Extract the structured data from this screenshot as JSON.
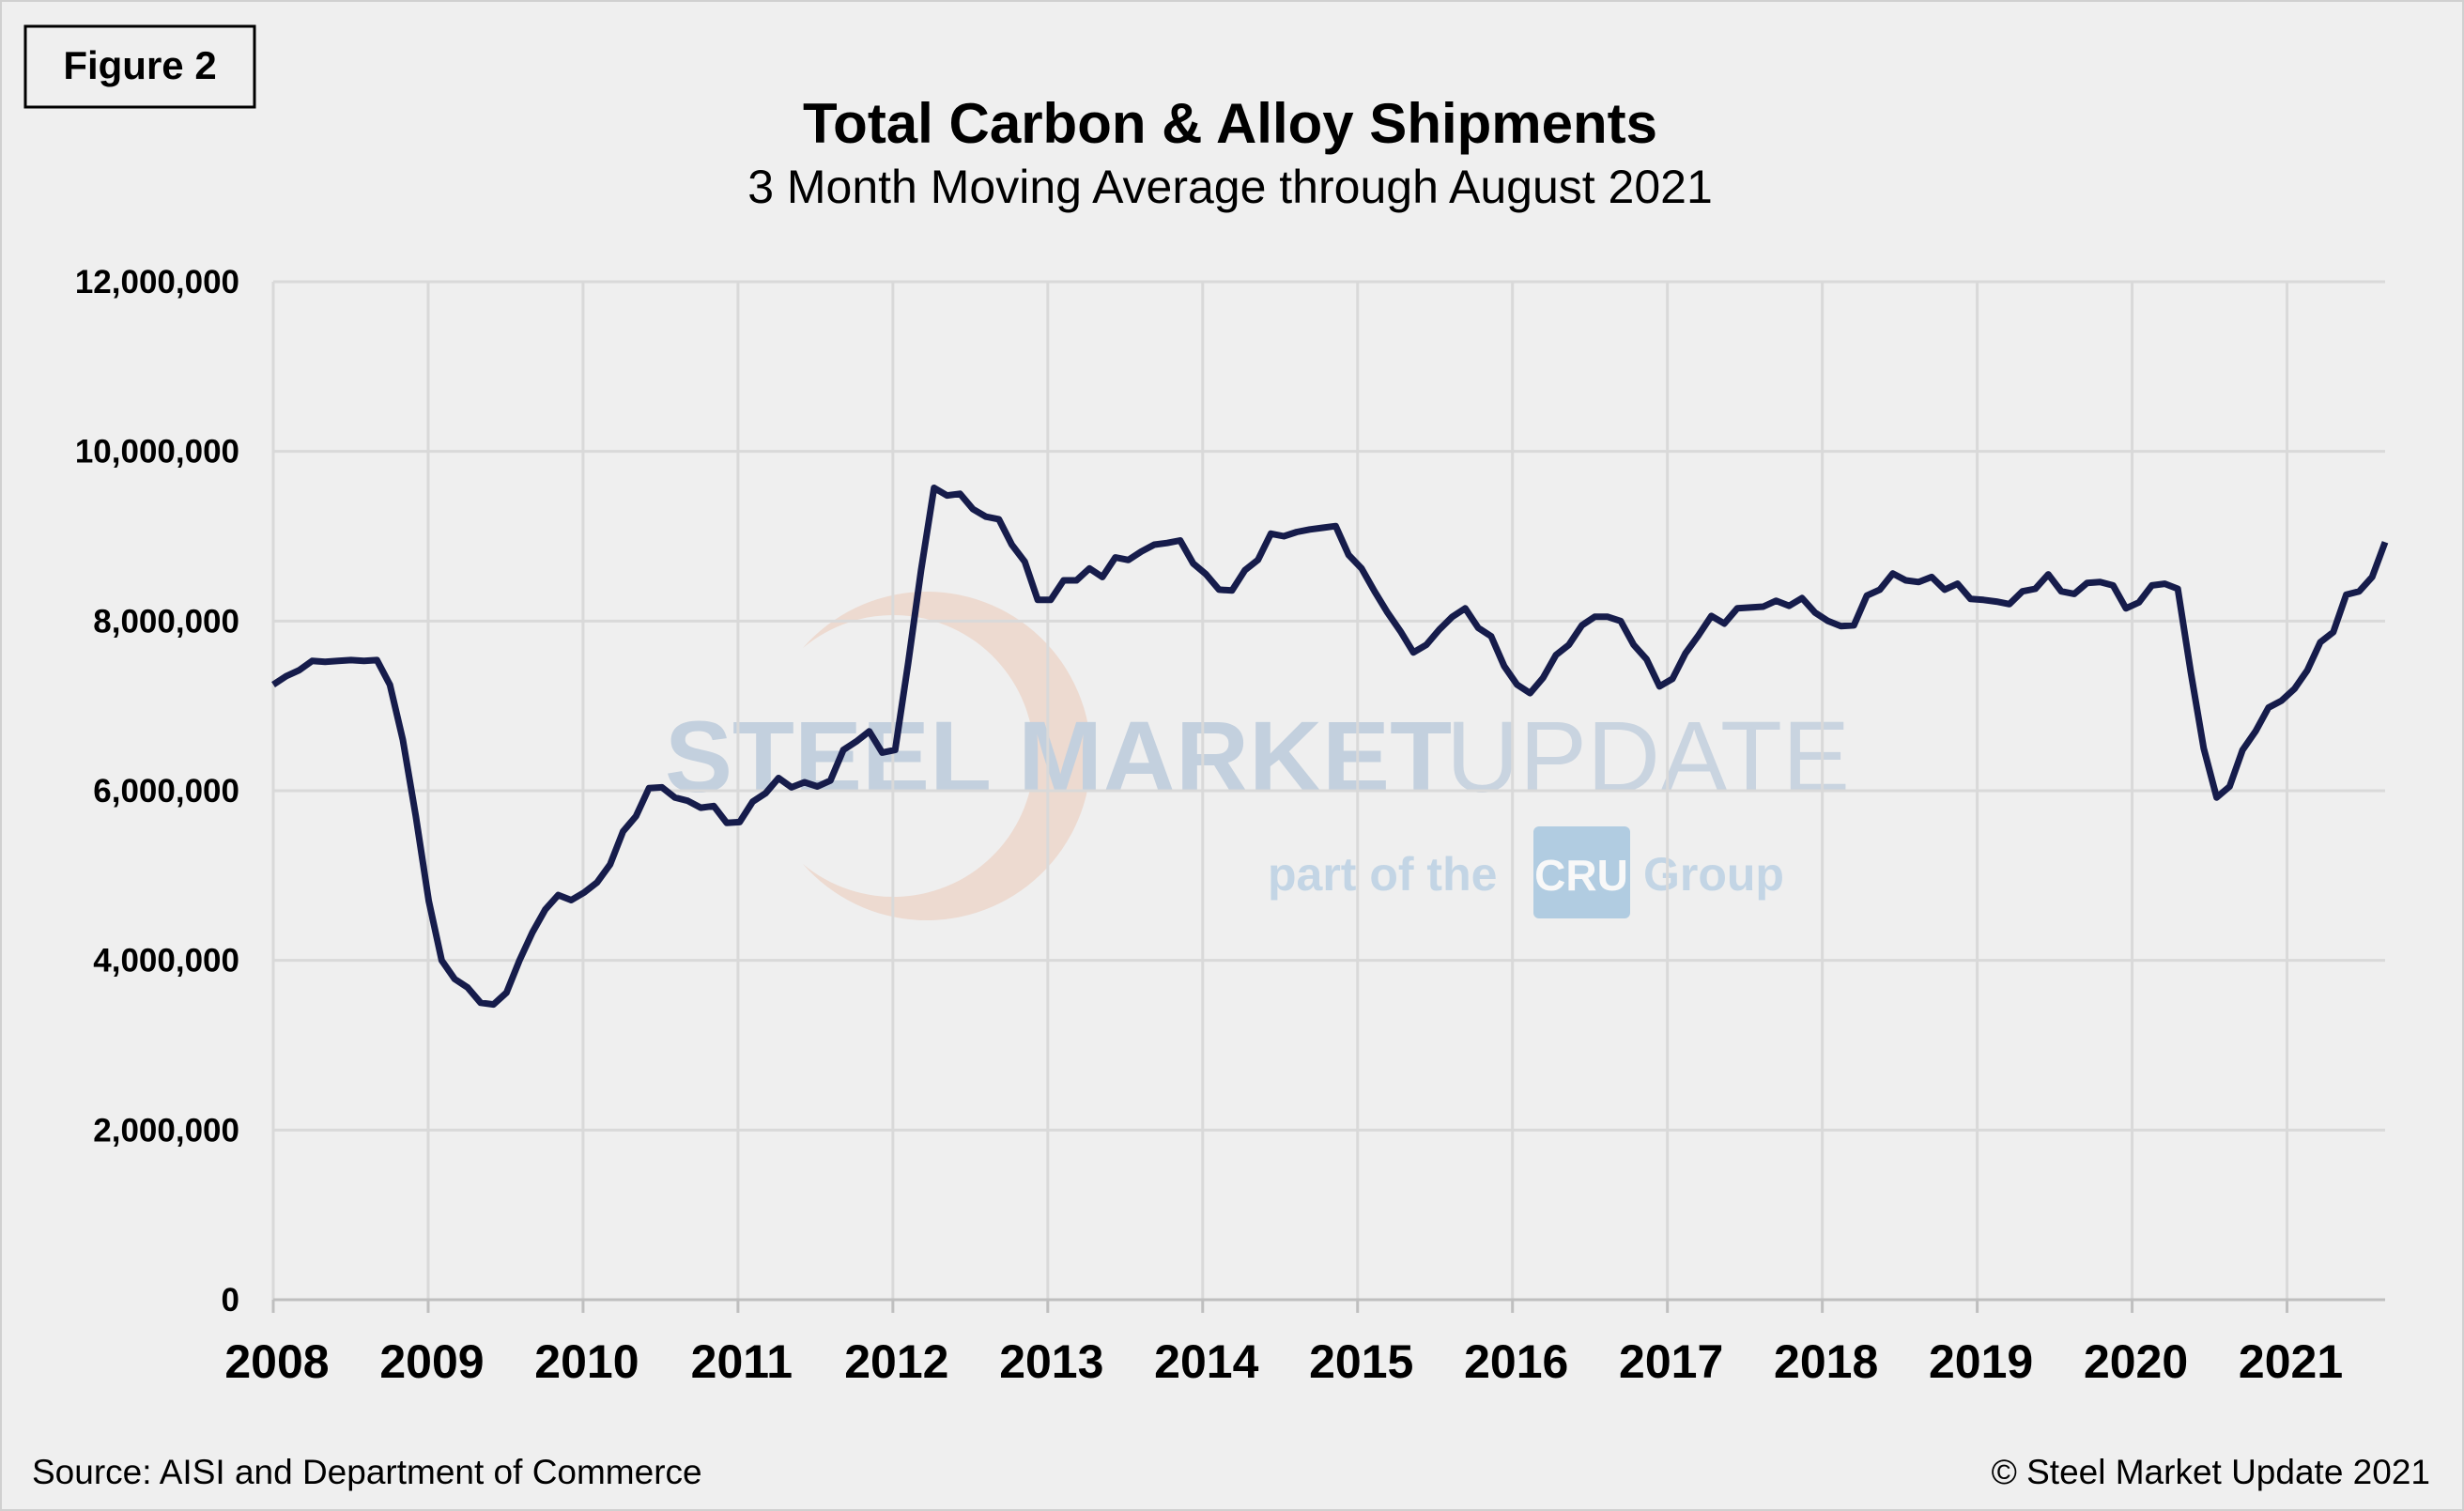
{
  "figure_label": "Figure 2",
  "source": "Source: AISI and Department of Commerce",
  "copyright": "© Steel Market Update 2021",
  "watermark": {
    "line1a": "STEEL MARKET",
    "line1b": "UPDATE",
    "line2a": "part of the",
    "line2b": "CRU",
    "line2c": "Group"
  },
  "colors": {
    "line": "#161c4b",
    "background": "#efefef",
    "grid": "#d9d9d9"
  },
  "chart_data": {
    "type": "line",
    "title": "Total Carbon & Alloy Shipments",
    "subtitle": "3 Month Moving Average through August 2021",
    "xlabel": "",
    "ylabel": "",
    "ylim": [
      0,
      12000000
    ],
    "yticks": [
      "0",
      "2,000,000",
      "4,000,000",
      "6,000,000",
      "8,000,000",
      "10,000,000",
      "12,000,000"
    ],
    "xticks": [
      "2008",
      "2009",
      "2010",
      "2011",
      "2012",
      "2013",
      "2014",
      "2015",
      "2016",
      "2017",
      "2018",
      "2019",
      "2020",
      "2021"
    ],
    "x_start": "2008-01",
    "x_end": "2021-08",
    "frequency": "monthly",
    "grid": true,
    "legend": "none",
    "values": [
      7250000,
      7350000,
      7420000,
      7530000,
      7520000,
      7530000,
      7540000,
      7530000,
      7540000,
      7250000,
      6600000,
      5700000,
      4700000,
      4000000,
      3780000,
      3680000,
      3500000,
      3480000,
      3620000,
      4000000,
      4330000,
      4600000,
      4770000,
      4710000,
      4800000,
      4920000,
      5130000,
      5520000,
      5700000,
      6030000,
      6040000,
      5920000,
      5880000,
      5800000,
      5820000,
      5620000,
      5630000,
      5870000,
      5970000,
      6150000,
      6040000,
      6100000,
      6050000,
      6120000,
      6480000,
      6580000,
      6700000,
      6450000,
      6480000,
      7500000,
      8600000,
      9570000,
      9480000,
      9500000,
      9320000,
      9230000,
      9200000,
      8900000,
      8700000,
      8250000,
      8250000,
      8480000,
      8480000,
      8620000,
      8520000,
      8750000,
      8720000,
      8820000,
      8900000,
      8920000,
      8950000,
      8680000,
      8550000,
      8370000,
      8360000,
      8600000,
      8720000,
      9030000,
      9000000,
      9050000,
      9080000,
      9100000,
      9120000,
      8780000,
      8620000,
      8350000,
      8100000,
      7880000,
      7630000,
      7720000,
      7900000,
      8050000,
      8150000,
      7920000,
      7820000,
      7470000,
      7250000,
      7150000,
      7330000,
      7600000,
      7720000,
      7950000,
      8050000,
      8050000,
      8000000,
      7720000,
      7550000,
      7230000,
      7320000,
      7620000,
      7830000,
      8060000,
      7970000,
      8150000,
      8160000,
      8170000,
      8240000,
      8180000,
      8270000,
      8100000,
      8000000,
      7940000,
      7950000,
      8300000,
      8370000,
      8560000,
      8480000,
      8460000,
      8520000,
      8370000,
      8440000,
      8260000,
      8250000,
      8230000,
      8200000,
      8350000,
      8380000,
      8550000,
      8350000,
      8320000,
      8450000,
      8460000,
      8420000,
      8150000,
      8220000,
      8420000,
      8440000,
      8380000,
      7400000,
      6500000,
      5920000,
      6050000,
      6480000,
      6700000,
      6980000,
      7060000,
      7200000,
      7420000,
      7750000,
      7870000,
      8310000,
      8350000,
      8520000,
      8930000
    ]
  }
}
